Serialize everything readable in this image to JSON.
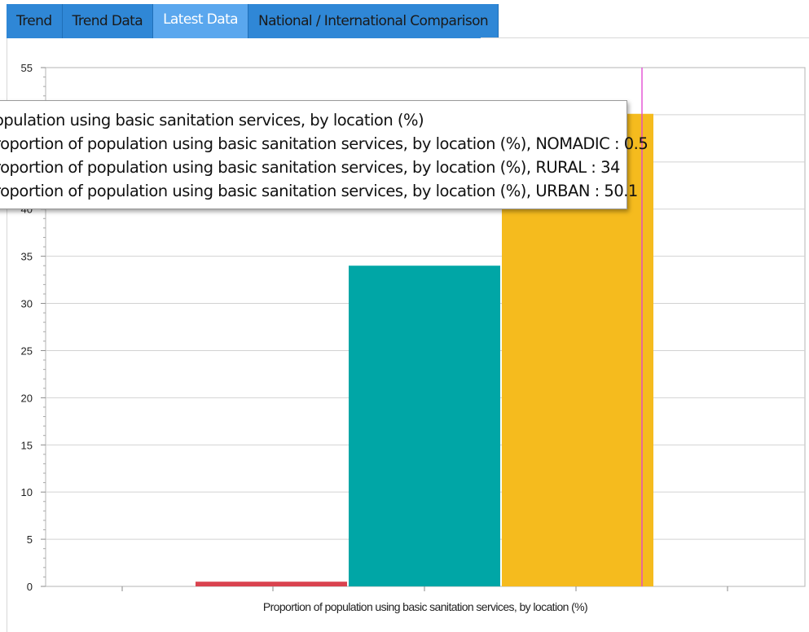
{
  "tabs": [
    {
      "label": "Trend",
      "active": false
    },
    {
      "label": "Trend Data",
      "active": false
    },
    {
      "label": "Latest Data",
      "active": true
    },
    {
      "label": "National / International Comparison",
      "active": false
    }
  ],
  "tooltip": {
    "lines": [
      "opulation using basic sanitation services, by location (%)",
      "roportion of population using basic sanitation services, by location (%), NOMADIC : 0.5",
      "roportion of population using basic sanitation services, by location (%), RURAL : 34",
      "roportion of population using basic sanitation services, by location (%), URBAN : 50.1"
    ]
  },
  "chart_data": {
    "type": "bar",
    "xlabel": "Proportion of population using basic sanitation services, by location (%)",
    "ylabel": "",
    "ylim": [
      0,
      55
    ],
    "yticks": [
      0,
      5,
      10,
      15,
      20,
      25,
      30,
      35,
      40,
      45,
      50,
      55
    ],
    "grid": true,
    "categories": [
      "Proportion of population using basic sanitation services, by location (%)"
    ],
    "series": [
      {
        "name": "NOMADIC",
        "values": [
          0.5
        ],
        "color": "#d9434f"
      },
      {
        "name": "RURAL",
        "values": [
          34
        ],
        "color": "#00a6a6"
      },
      {
        "name": "URBAN",
        "values": [
          50.1
        ],
        "color": "#f5bb1e"
      }
    ],
    "cursor_line_color": "#e040d0"
  }
}
